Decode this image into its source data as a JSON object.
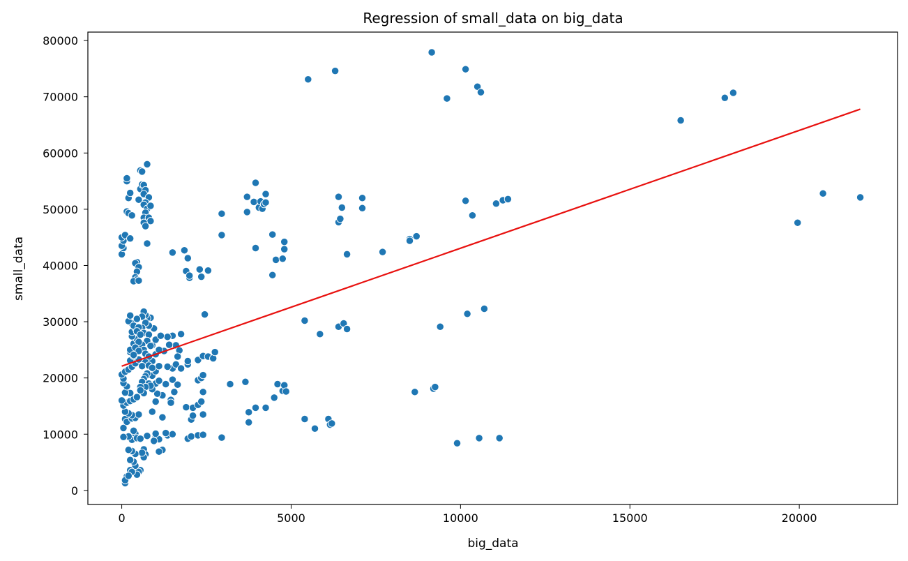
{
  "chart_data": {
    "type": "scatter",
    "title": "Regression of small_data on big_data",
    "xlabel": "big_data",
    "ylabel": "small_data",
    "xlim": [
      -1000,
      22900
    ],
    "ylim": [
      -2500,
      81500
    ],
    "xticks": [
      0,
      5000,
      10000,
      15000,
      20000
    ],
    "yticks": [
      0,
      10000,
      20000,
      30000,
      40000,
      50000,
      60000,
      70000,
      80000
    ],
    "grid": false,
    "point_color": "#1f77b4",
    "line_color": "#e8110f",
    "regression_line": {
      "x": [
        0,
        21800
      ],
      "y": [
        22100,
        67800
      ]
    },
    "points": [
      [
        5500,
        73100
      ],
      [
        6300,
        74600
      ],
      [
        9150,
        77900
      ],
      [
        9600,
        69700
      ],
      [
        10150,
        74900
      ],
      [
        10500,
        71800
      ],
      [
        10600,
        70800
      ],
      [
        16500,
        65800
      ],
      [
        17800,
        69800
      ],
      [
        18050,
        70700
      ],
      [
        19950,
        47600
      ],
      [
        20700,
        52800
      ],
      [
        21800,
        52100
      ],
      [
        1750,
        27800
      ],
      [
        1500,
        27500
      ],
      [
        1600,
        25800
      ],
      [
        1350,
        27300
      ],
      [
        1400,
        25900
      ],
      [
        1700,
        24900
      ],
      [
        1250,
        24800
      ],
      [
        1650,
        23800
      ],
      [
        1950,
        22400
      ],
      [
        1500,
        21700
      ],
      [
        1600,
        22400
      ],
      [
        1350,
        22000
      ],
      [
        1950,
        23000
      ],
      [
        1750,
        21700
      ],
      [
        1300,
        18900
      ],
      [
        1500,
        19700
      ],
      [
        1650,
        18800
      ],
      [
        1550,
        17500
      ],
      [
        1450,
        16100
      ],
      [
        1200,
        16900
      ],
      [
        1450,
        15600
      ],
      [
        1200,
        13000
      ],
      [
        1350,
        9800
      ],
      [
        1500,
        10000
      ],
      [
        1300,
        10200
      ],
      [
        1200,
        7200
      ],
      [
        1100,
        6900
      ],
      [
        1000,
        9400
      ],
      [
        1100,
        9100
      ],
      [
        1000,
        10100
      ],
      [
        950,
        8800
      ],
      [
        900,
        14000
      ],
      [
        1000,
        15800
      ],
      [
        1050,
        17200
      ],
      [
        900,
        18000
      ],
      [
        1000,
        19000
      ],
      [
        1100,
        19500
      ],
      [
        900,
        20400
      ],
      [
        1000,
        21200
      ],
      [
        1100,
        22100
      ],
      [
        900,
        23000
      ],
      [
        1000,
        24200
      ],
      [
        1100,
        25000
      ],
      [
        900,
        25800
      ],
      [
        1000,
        26800
      ],
      [
        1150,
        27500
      ],
      [
        950,
        28800
      ],
      [
        850,
        30700
      ],
      [
        800,
        29300
      ],
      [
        750,
        30600
      ],
      [
        700,
        31200
      ],
      [
        650,
        31800
      ],
      [
        600,
        30900
      ],
      [
        700,
        29800
      ],
      [
        600,
        28900
      ],
      [
        650,
        28000
      ],
      [
        800,
        27700
      ],
      [
        750,
        26600
      ],
      [
        850,
        25700
      ],
      [
        600,
        25900
      ],
      [
        650,
        25000
      ],
      [
        700,
        24300
      ],
      [
        800,
        23800
      ],
      [
        700,
        22800
      ],
      [
        600,
        22100
      ],
      [
        800,
        22200
      ],
      [
        900,
        21800
      ],
      [
        750,
        20800
      ],
      [
        700,
        20300
      ],
      [
        650,
        19800
      ],
      [
        600,
        19300
      ],
      [
        800,
        19000
      ],
      [
        850,
        18600
      ],
      [
        700,
        18400
      ],
      [
        550,
        18400
      ],
      [
        650,
        17300
      ],
      [
        550,
        17800
      ],
      [
        750,
        9700
      ],
      [
        650,
        7300
      ],
      [
        700,
        6400
      ],
      [
        650,
        5900
      ],
      [
        600,
        6700
      ],
      [
        550,
        3600
      ],
      [
        500,
        3300
      ],
      [
        450,
        2800
      ],
      [
        400,
        4400
      ],
      [
        350,
        5100
      ],
      [
        400,
        6500
      ],
      [
        300,
        7000
      ],
      [
        250,
        5400
      ],
      [
        250,
        3600
      ],
      [
        300,
        3300
      ],
      [
        200,
        7200
      ],
      [
        150,
        2500
      ],
      [
        100,
        1300
      ],
      [
        100,
        1800
      ],
      [
        200,
        2600
      ],
      [
        500,
        9200
      ],
      [
        300,
        9000
      ],
      [
        400,
        10100
      ],
      [
        350,
        10600
      ],
      [
        450,
        9300
      ],
      [
        550,
        9200
      ],
      [
        200,
        9600
      ],
      [
        50,
        9500
      ],
      [
        50,
        11100
      ],
      [
        100,
        12700
      ],
      [
        150,
        12200
      ],
      [
        300,
        12800
      ],
      [
        400,
        12900
      ],
      [
        500,
        13500
      ],
      [
        300,
        13400
      ],
      [
        200,
        13700
      ],
      [
        100,
        14000
      ],
      [
        50,
        15100
      ],
      [
        150,
        15600
      ],
      [
        250,
        15900
      ],
      [
        350,
        16200
      ],
      [
        450,
        16600
      ],
      [
        250,
        17300
      ],
      [
        100,
        17400
      ],
      [
        0,
        16000
      ],
      [
        150,
        18500
      ],
      [
        50,
        19100
      ],
      [
        50,
        19900
      ],
      [
        0,
        20600
      ],
      [
        100,
        21100
      ],
      [
        200,
        21500
      ],
      [
        300,
        22000
      ],
      [
        400,
        22600
      ],
      [
        500,
        23300
      ],
      [
        250,
        23100
      ],
      [
        350,
        23900
      ],
      [
        250,
        24600
      ],
      [
        250,
        25000
      ],
      [
        350,
        26100
      ],
      [
        450,
        26900
      ],
      [
        300,
        27400
      ],
      [
        300,
        28200
      ],
      [
        400,
        28900
      ],
      [
        300,
        29700
      ],
      [
        200,
        30100
      ],
      [
        250,
        31100
      ],
      [
        450,
        30500
      ],
      [
        350,
        29300
      ],
      [
        500,
        29000
      ],
      [
        450,
        28300
      ],
      [
        550,
        27700
      ],
      [
        500,
        26400
      ],
      [
        400,
        25400
      ],
      [
        500,
        24800
      ],
      [
        350,
        24100
      ],
      [
        0,
        42000
      ],
      [
        50,
        43100
      ],
      [
        0,
        43500
      ],
      [
        50,
        44400
      ],
      [
        0,
        45000
      ],
      [
        100,
        45400
      ],
      [
        250,
        44800
      ],
      [
        150,
        49600
      ],
      [
        200,
        49300
      ],
      [
        300,
        48900
      ],
      [
        200,
        52000
      ],
      [
        250,
        52900
      ],
      [
        150,
        55000
      ],
      [
        150,
        55500
      ],
      [
        500,
        51700
      ],
      [
        550,
        53600
      ],
      [
        600,
        54400
      ],
      [
        650,
        54300
      ],
      [
        550,
        56900
      ],
      [
        600,
        56700
      ],
      [
        750,
        58000
      ],
      [
        700,
        53400
      ],
      [
        650,
        52700
      ],
      [
        800,
        52100
      ],
      [
        700,
        51200
      ],
      [
        650,
        50800
      ],
      [
        750,
        50100
      ],
      [
        850,
        50600
      ],
      [
        700,
        49400
      ],
      [
        650,
        48500
      ],
      [
        800,
        48500
      ],
      [
        850,
        47900
      ],
      [
        650,
        47600
      ],
      [
        700,
        47000
      ],
      [
        750,
        43900
      ],
      [
        450,
        40600
      ],
      [
        400,
        40400
      ],
      [
        500,
        39700
      ],
      [
        450,
        38900
      ],
      [
        400,
        37900
      ],
      [
        450,
        37500
      ],
      [
        350,
        37200
      ],
      [
        500,
        37300
      ],
      [
        1500,
        42300
      ],
      [
        1850,
        42700
      ],
      [
        1900,
        39000
      ],
      [
        2000,
        37800
      ],
      [
        2000,
        38200
      ],
      [
        1950,
        41300
      ],
      [
        2300,
        39300
      ],
      [
        2350,
        38000
      ],
      [
        2550,
        39100
      ],
      [
        2950,
        45400
      ],
      [
        2950,
        49200
      ],
      [
        3700,
        52200
      ],
      [
        3700,
        49500
      ],
      [
        3950,
        43100
      ],
      [
        3900,
        51300
      ],
      [
        3950,
        54700
      ],
      [
        4050,
        50300
      ],
      [
        4100,
        51400
      ],
      [
        4150,
        50100
      ],
      [
        4200,
        50900
      ],
      [
        4250,
        51200
      ],
      [
        4250,
        52700
      ],
      [
        4450,
        45500
      ],
      [
        4450,
        38300
      ],
      [
        4550,
        41000
      ],
      [
        4750,
        41200
      ],
      [
        4800,
        42900
      ],
      [
        4800,
        44200
      ],
      [
        6400,
        47700
      ],
      [
        6450,
        48300
      ],
      [
        6500,
        50300
      ],
      [
        6400,
        52200
      ],
      [
        6650,
        42000
      ],
      [
        7100,
        50200
      ],
      [
        7100,
        52000
      ],
      [
        7700,
        42400
      ],
      [
        8500,
        44700
      ],
      [
        8500,
        44400
      ],
      [
        8700,
        45200
      ],
      [
        10150,
        51500
      ],
      [
        10350,
        48900
      ],
      [
        11050,
        51000
      ],
      [
        11250,
        51600
      ],
      [
        11400,
        51800
      ],
      [
        2450,
        31300
      ],
      [
        2250,
        23200
      ],
      [
        2400,
        23900
      ],
      [
        2550,
        23800
      ],
      [
        2700,
        23500
      ],
      [
        2750,
        24600
      ],
      [
        2250,
        19600
      ],
      [
        2350,
        20000
      ],
      [
        2400,
        20500
      ],
      [
        2400,
        17500
      ],
      [
        1900,
        14800
      ],
      [
        2100,
        14700
      ],
      [
        2250,
        15200
      ],
      [
        2350,
        15800
      ],
      [
        2050,
        12600
      ],
      [
        2100,
        13300
      ],
      [
        2400,
        13500
      ],
      [
        1950,
        9200
      ],
      [
        2050,
        9600
      ],
      [
        2250,
        9800
      ],
      [
        2400,
        9900
      ],
      [
        2950,
        9400
      ],
      [
        3200,
        18900
      ],
      [
        3650,
        19300
      ],
      [
        3750,
        13900
      ],
      [
        3750,
        12100
      ],
      [
        3950,
        14700
      ],
      [
        4250,
        14700
      ],
      [
        4500,
        16500
      ],
      [
        4600,
        18900
      ],
      [
        4750,
        17700
      ],
      [
        4800,
        18700
      ],
      [
        4850,
        17600
      ],
      [
        5400,
        30200
      ],
      [
        5850,
        27800
      ],
      [
        6400,
        29100
      ],
      [
        6550,
        29700
      ],
      [
        6650,
        28700
      ],
      [
        5400,
        12700
      ],
      [
        5700,
        11000
      ],
      [
        6100,
        12700
      ],
      [
        6150,
        11700
      ],
      [
        6200,
        11900
      ],
      [
        9400,
        29100
      ],
      [
        10200,
        31400
      ],
      [
        10700,
        32300
      ],
      [
        8650,
        17500
      ],
      [
        9200,
        18100
      ],
      [
        9250,
        18400
      ],
      [
        9900,
        8400
      ],
      [
        10550,
        9300
      ],
      [
        11150,
        9300
      ]
    ]
  }
}
